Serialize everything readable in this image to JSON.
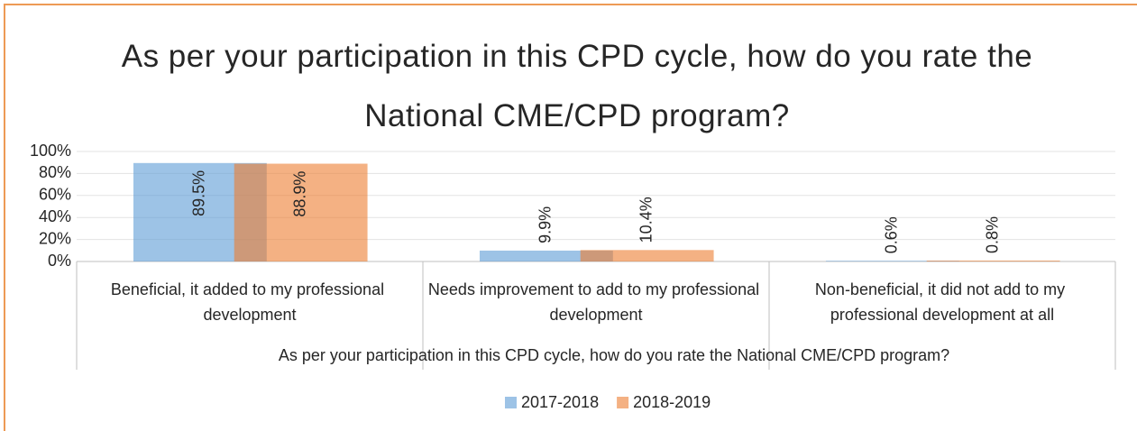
{
  "chart_data": {
    "type": "bar",
    "title": "As per your participation in this CPD cycle, how do you rate the National CME/CPD program?",
    "x_label": "As per your participation in this CPD cycle, how do you rate the National CME/CPD program?",
    "categories": [
      "Beneficial, it added to my professional development",
      "Needs improvement to add to my professional development",
      "Non-beneficial, it did not add to my professional development at all"
    ],
    "series": [
      {
        "name": "2017-2018",
        "color": "#5b9bd5",
        "values": [
          89.5,
          9.9,
          0.6
        ],
        "value_labels": [
          "89.5%",
          "9.9%",
          "0.6%"
        ]
      },
      {
        "name": "2018-2019",
        "color": "#ed7d31",
        "values": [
          88.9,
          10.4,
          0.8
        ],
        "value_labels": [
          "88.9%",
          "10.4%",
          "0.8%"
        ]
      }
    ],
    "ylim": [
      0,
      100
    ],
    "yticks": [
      {
        "value": 0,
        "label": "0%"
      },
      {
        "value": 20,
        "label": "20%"
      },
      {
        "value": 40,
        "label": "40%"
      },
      {
        "value": 60,
        "label": "60%"
      },
      {
        "value": 80,
        "label": "80%"
      },
      {
        "value": 100,
        "label": "100%"
      }
    ],
    "grid": true,
    "legend": "bottom"
  }
}
